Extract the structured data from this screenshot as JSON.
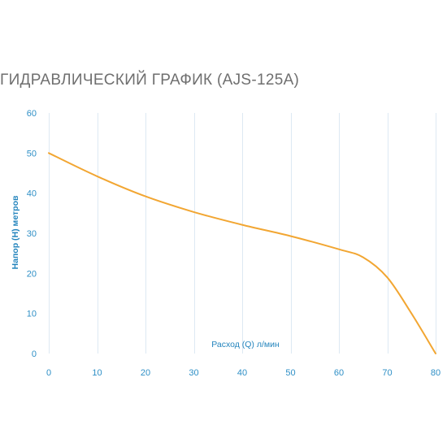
{
  "chart_data": {
    "type": "line",
    "title": "ГИДРАВЛИЧЕСКИЙ ГРАФИК (AJS-125A)",
    "xlabel": "Расход (Q) л/мин",
    "ylabel": "Напор (H) метров",
    "xlim": [
      0,
      80
    ],
    "ylim": [
      0,
      60
    ],
    "xticks": [
      0,
      10,
      20,
      30,
      40,
      50,
      60,
      70,
      80
    ],
    "yticks": [
      0,
      10,
      20,
      30,
      40,
      50,
      60
    ],
    "grid": "vertical",
    "series": [
      {
        "x": [
          0,
          10,
          20,
          30,
          40,
          50,
          60,
          65,
          70,
          75,
          80
        ],
        "y": [
          50,
          44.2,
          39.2,
          35.3,
          32.1,
          29.3,
          26,
          24,
          19,
          10,
          0
        ]
      }
    ],
    "colors": {
      "line": "#f2a632",
      "grid": "#dde9f3",
      "tick_text": "#2e8fc6",
      "axis_text": "#2384bd",
      "title": "#6f6f6f"
    }
  }
}
